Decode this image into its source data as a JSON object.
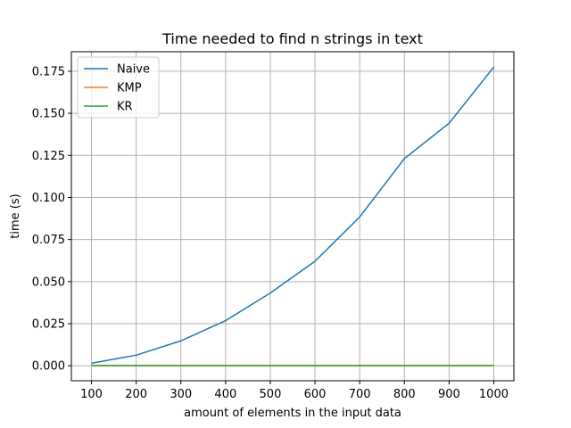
{
  "chart_data": {
    "type": "line",
    "title": "Time needed to find n strings in text",
    "xlabel": "amount of elements in the input data",
    "ylabel": "time (s)",
    "x": [
      100,
      200,
      300,
      400,
      500,
      600,
      700,
      800,
      900,
      1000
    ],
    "xticks": [
      "100",
      "200",
      "300",
      "400",
      "500",
      "600",
      "700",
      "800",
      "900",
      "1000"
    ],
    "yticks": [
      "0.000",
      "0.025",
      "0.050",
      "0.075",
      "0.100",
      "0.125",
      "0.150",
      "0.175"
    ],
    "ytick_values": [
      0,
      0.025,
      0.05,
      0.075,
      0.1,
      0.125,
      0.15,
      0.175
    ],
    "xlim": [
      55,
      1045
    ],
    "ylim": [
      -0.0089,
      0.1866
    ],
    "grid": true,
    "legend_position": "upper-left",
    "series": [
      {
        "name": "Naive",
        "color": "#1f77b4",
        "values": [
          0.0015,
          0.0063,
          0.0148,
          0.0268,
          0.0432,
          0.0621,
          0.0884,
          0.1231,
          0.1441,
          0.1775
        ]
      },
      {
        "name": "KMP",
        "color": "#ff7f0e",
        "values": [
          0.0001,
          0.0001,
          0.0001,
          0.0001,
          0.0001,
          0.0001,
          0.0001,
          0.0001,
          0.0001,
          0.0001
        ]
      },
      {
        "name": "KR",
        "color": "#2ca02c",
        "values": [
          0.0001,
          0.0001,
          0.0001,
          0.0001,
          0.0001,
          0.0001,
          0.0001,
          0.0001,
          0.0001,
          0.0001
        ]
      }
    ]
  }
}
